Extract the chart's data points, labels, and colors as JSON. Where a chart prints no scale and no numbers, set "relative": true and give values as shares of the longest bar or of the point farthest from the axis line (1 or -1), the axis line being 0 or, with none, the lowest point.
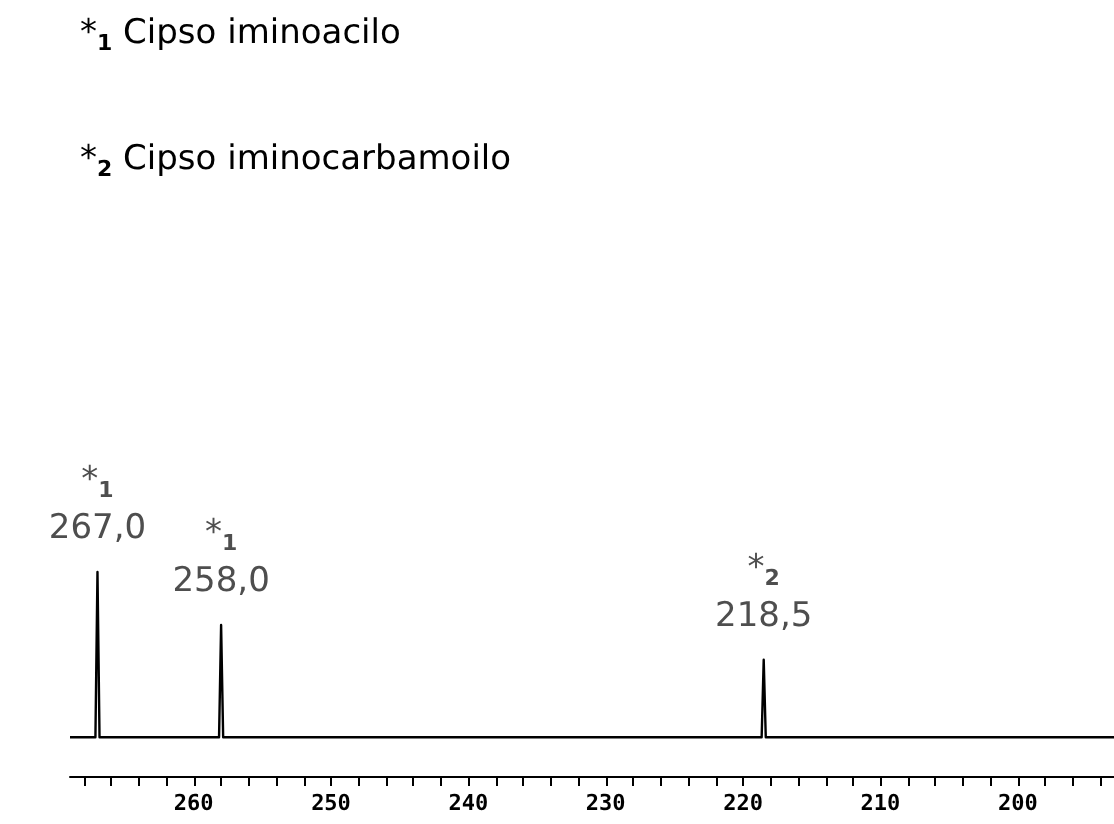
{
  "chart_data": {
    "type": "line",
    "relative": true,
    "color": "#000000",
    "marker": "none",
    "grid": false,
    "tick_labels": "x",
    "x": [
      269,
      267.15,
      267,
      266.85,
      258.15,
      258,
      257.85,
      218.65,
      218.5,
      218.35,
      193
    ],
    "values": [
      0.19,
      0.19,
      1,
      0.19,
      0.19,
      0.74,
      0.19,
      0.19,
      0.57,
      0.19,
      0.19
    ],
    "xlim": [
      269,
      193
    ],
    "xticks": [
      {
        "value": 268,
        "label": null
      },
      {
        "value": 266,
        "label": null
      },
      {
        "value": 264,
        "label": null
      },
      {
        "value": 262,
        "label": null
      },
      260,
      {
        "value": 258,
        "label": null
      },
      {
        "value": 256,
        "label": null
      },
      {
        "value": 254,
        "label": null
      },
      {
        "value": 252,
        "label": null
      },
      250,
      {
        "value": 248,
        "label": null
      },
      {
        "value": 246,
        "label": null
      },
      {
        "value": 244,
        "label": null
      },
      {
        "value": 242,
        "label": null
      },
      240,
      {
        "value": 238,
        "label": null
      },
      {
        "value": 236,
        "label": null
      },
      {
        "value": 234,
        "label": null
      },
      {
        "value": 232,
        "label": null
      },
      230,
      {
        "value": 228,
        "label": null
      },
      {
        "value": 226,
        "label": null
      },
      {
        "value": 224,
        "label": null
      },
      {
        "value": 222,
        "label": null
      },
      220,
      {
        "value": 218,
        "label": null
      },
      {
        "value": 216,
        "label": null
      },
      {
        "value": 214,
        "label": null
      },
      {
        "value": 212,
        "label": null
      },
      210,
      {
        "value": 208,
        "label": null
      },
      {
        "value": 206,
        "label": null
      },
      {
        "value": 204,
        "label": null
      },
      {
        "value": 202,
        "label": null
      },
      200,
      {
        "value": 198,
        "label": null
      },
      {
        "value": 196,
        "label": null
      },
      {
        "value": 194,
        "label": null
      }
    ],
    "annotations": [
      "*$_{1}$ Cipso iminoacilo",
      "*$_{2}$ Cipso iminocarbamoilo",
      {
        "text": "*$_{1}$",
        "x": 267,
        "y": 1
      },
      {
        "text": "267,0",
        "x": 267,
        "y": 1
      },
      {
        "text": "*$_{1}$",
        "x": 258,
        "y": 0.74
      },
      {
        "text": "258,0",
        "x": 258,
        "y": 0.74
      },
      {
        "text": "*$_{2}$",
        "x": 218.5,
        "y": 0.57
      },
      {
        "text": "218,5",
        "x": 218.5,
        "y": 0.57
      }
    ]
  }
}
